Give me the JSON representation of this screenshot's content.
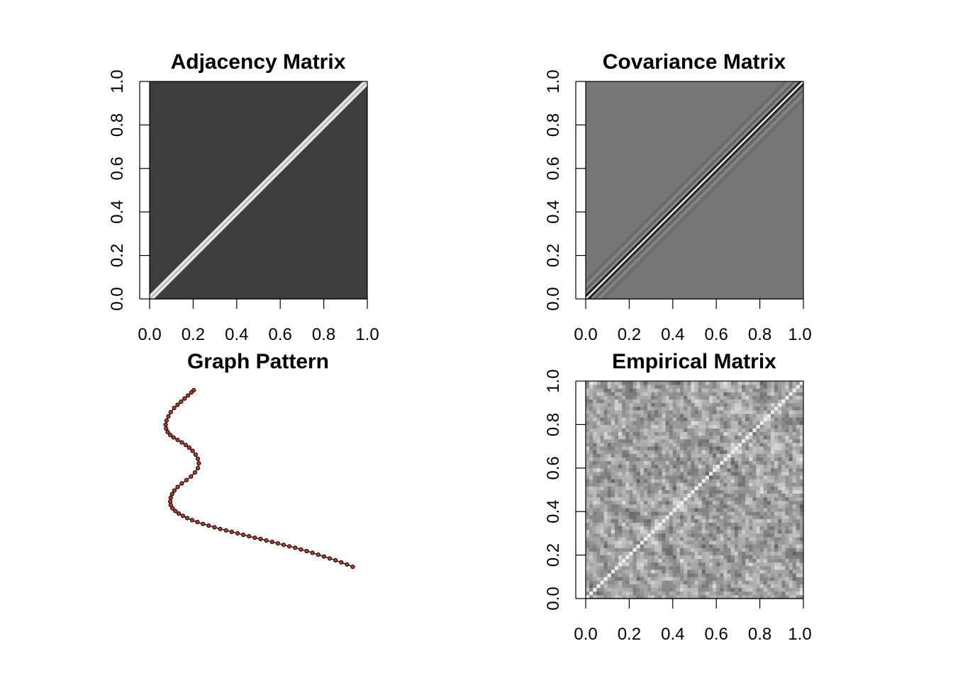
{
  "chart_data": [
    {
      "type": "heatmap",
      "title": "Adjacency Matrix",
      "xlim": [
        0,
        1
      ],
      "ylim": [
        0,
        1
      ],
      "xticks": [
        "0.0",
        "0.2",
        "0.4",
        "0.6",
        "0.8",
        "1.0"
      ],
      "yticks": [
        "0.0",
        "0.2",
        "0.4",
        "0.6",
        "0.8",
        "1.0"
      ],
      "pattern": "band",
      "background_color": "#3d3d3d",
      "band_color": "#e2e2e2",
      "band_halfwidth": 0.02
    },
    {
      "type": "heatmap",
      "title": "Covariance Matrix",
      "xlim": [
        0,
        1
      ],
      "ylim": [
        0,
        1
      ],
      "xticks": [
        "0.0",
        "0.2",
        "0.4",
        "0.6",
        "0.8",
        "1.0"
      ],
      "yticks": [
        "0.0",
        "0.2",
        "0.4",
        "0.6",
        "0.8",
        "1.0"
      ],
      "pattern": "covariance",
      "background_color": "#777777",
      "diagonal_color": "#ffffff",
      "near_diagonal_color": "#2a2a2a"
    },
    {
      "type": "scatter",
      "title": "Graph Pattern",
      "axes": false,
      "point_color": "#c0392b",
      "line_color": "#000000",
      "x": [
        0.21,
        0.2,
        0.185,
        0.17,
        0.155,
        0.14,
        0.125,
        0.11,
        0.1,
        0.092,
        0.088,
        0.09,
        0.097,
        0.108,
        0.122,
        0.14,
        0.158,
        0.175,
        0.19,
        0.205,
        0.218,
        0.228,
        0.232,
        0.228,
        0.215,
        0.198,
        0.178,
        0.158,
        0.14,
        0.126,
        0.116,
        0.11,
        0.108,
        0.11,
        0.118,
        0.13,
        0.145,
        0.163,
        0.182,
        0.203,
        0.226,
        0.25,
        0.275,
        0.3,
        0.325,
        0.35,
        0.375,
        0.4,
        0.425,
        0.45,
        0.475,
        0.5,
        0.525,
        0.55,
        0.575,
        0.6,
        0.625,
        0.65,
        0.675,
        0.7,
        0.725,
        0.75,
        0.775,
        0.8,
        0.825,
        0.85,
        0.875,
        0.9
      ],
      "y": [
        0.98,
        0.97,
        0.955,
        0.94,
        0.925,
        0.91,
        0.895,
        0.875,
        0.855,
        0.835,
        0.815,
        0.797,
        0.78,
        0.766,
        0.754,
        0.742,
        0.73,
        0.718,
        0.705,
        0.69,
        0.672,
        0.652,
        0.63,
        0.607,
        0.586,
        0.567,
        0.55,
        0.534,
        0.517,
        0.5,
        0.483,
        0.465,
        0.447,
        0.43,
        0.415,
        0.402,
        0.39,
        0.379,
        0.368,
        0.358,
        0.349,
        0.34,
        0.332,
        0.324,
        0.316,
        0.309,
        0.302,
        0.295,
        0.288,
        0.281,
        0.274,
        0.268,
        0.261,
        0.254,
        0.247,
        0.24,
        0.233,
        0.226,
        0.218,
        0.21,
        0.202,
        0.193,
        0.184,
        0.175,
        0.166,
        0.156,
        0.146,
        0.135
      ]
    },
    {
      "type": "heatmap",
      "title": "Empirical Matrix",
      "xlim": [
        0,
        1
      ],
      "ylim": [
        0,
        1
      ],
      "xticks": [
        "0.0",
        "0.2",
        "0.4",
        "0.6",
        "0.8",
        "1.0"
      ],
      "yticks": [
        "0.0",
        "0.2",
        "0.4",
        "0.6",
        "0.8",
        "1.0"
      ],
      "pattern": "noise",
      "background_color": "#a8a8a8",
      "diagonal_color": "#eeeeee"
    }
  ]
}
